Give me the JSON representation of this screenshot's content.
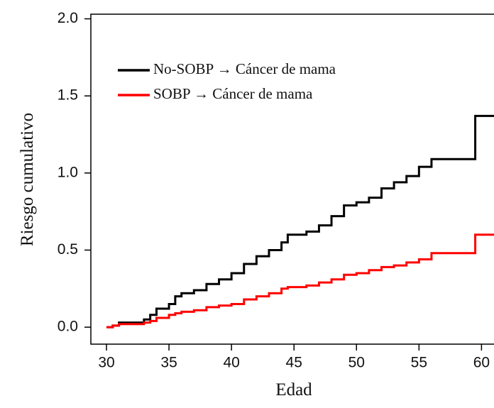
{
  "chart_data": {
    "type": "line",
    "step": "post",
    "legend": "top-left",
    "xlabel": "Edad",
    "ylabel": "Riesgo cumulativo",
    "x": [
      30,
      30.5,
      31,
      32.5,
      33,
      33.5,
      34,
      35,
      35.5,
      36,
      37,
      38,
      39,
      40,
      41,
      42,
      43,
      44,
      44.5,
      46,
      47,
      48,
      49,
      50,
      51,
      52,
      53,
      54,
      55,
      56,
      59.5,
      61
    ],
    "series": [
      {
        "name": "No-SOBP → Cáncer de mama",
        "color": "#000000",
        "values": [
          0,
          0.01,
          0.03,
          0.03,
          0.05,
          0.08,
          0.12,
          0.15,
          0.2,
          0.22,
          0.24,
          0.28,
          0.31,
          0.35,
          0.41,
          0.46,
          0.5,
          0.55,
          0.6,
          0.62,
          0.66,
          0.72,
          0.79,
          0.81,
          0.84,
          0.9,
          0.94,
          0.98,
          1.04,
          1.09,
          1.37,
          1.37
        ]
      },
      {
        "name": "SOBP → Cáncer de mama",
        "color": "#ff0000",
        "values": [
          0,
          0.01,
          0.02,
          0.02,
          0.03,
          0.04,
          0.06,
          0.08,
          0.09,
          0.1,
          0.11,
          0.13,
          0.14,
          0.15,
          0.18,
          0.2,
          0.22,
          0.25,
          0.26,
          0.27,
          0.29,
          0.31,
          0.34,
          0.35,
          0.37,
          0.39,
          0.4,
          0.42,
          0.44,
          0.48,
          0.6,
          0.6
        ]
      }
    ],
    "xlim": [
      28.75,
      61
    ],
    "xticks": [
      30,
      35,
      40,
      45,
      50,
      55,
      60
    ],
    "ylim": [
      -0.11,
      2.03
    ],
    "yticks": [
      {
        "value": 0,
        "label": "0.0"
      },
      0.5,
      {
        "value": 1,
        "label": "1.0"
      },
      1.5,
      {
        "value": 2,
        "label": "2.0"
      }
    ]
  }
}
